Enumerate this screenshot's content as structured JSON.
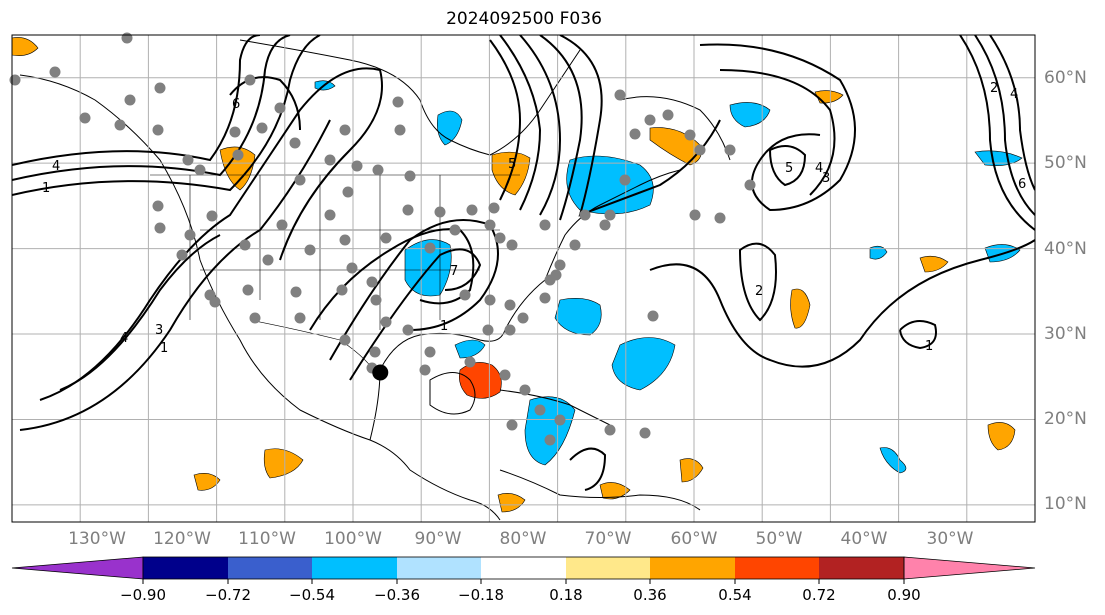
{
  "title": "2024092500 F036",
  "map": {
    "projection": "equirectangular",
    "lon_range": [
      -140,
      10
    ],
    "lat_range": [
      8,
      65
    ],
    "longitude_labels": [
      "130°W",
      "120°W",
      "110°W",
      "100°W",
      "90°W",
      "80°W",
      "70°W",
      "60°W",
      "50°W",
      "40°W",
      "30°W"
    ],
    "latitude_labels": [
      "60°N",
      "50°N",
      "40°N",
      "30°N",
      "20°N",
      "10°N"
    ],
    "grid": true,
    "coastlines": true,
    "state_borders": true,
    "contour_color": "#000000",
    "contour_labels": [
      "1",
      "2",
      "3",
      "4",
      "5",
      "6",
      "7"
    ],
    "station_marker_color": "#808080",
    "storm_marker": {
      "lat": 25.5,
      "lon": -86.0,
      "color": "#000000"
    }
  },
  "colorbar": {
    "ticks": [
      "−0.90",
      "−0.72",
      "−0.54",
      "−0.36",
      "−0.18",
      "0.18",
      "0.36",
      "0.54",
      "0.72",
      "0.90"
    ],
    "colors": [
      "#9932cc",
      "#00008b",
      "#3a5fcd",
      "#00bfff",
      "#b0e2ff",
      "#ffffff",
      "#ffe88a",
      "#ffa500",
      "#ff4500",
      "#b22222",
      "#ff82ab"
    ],
    "extend": "both"
  }
}
